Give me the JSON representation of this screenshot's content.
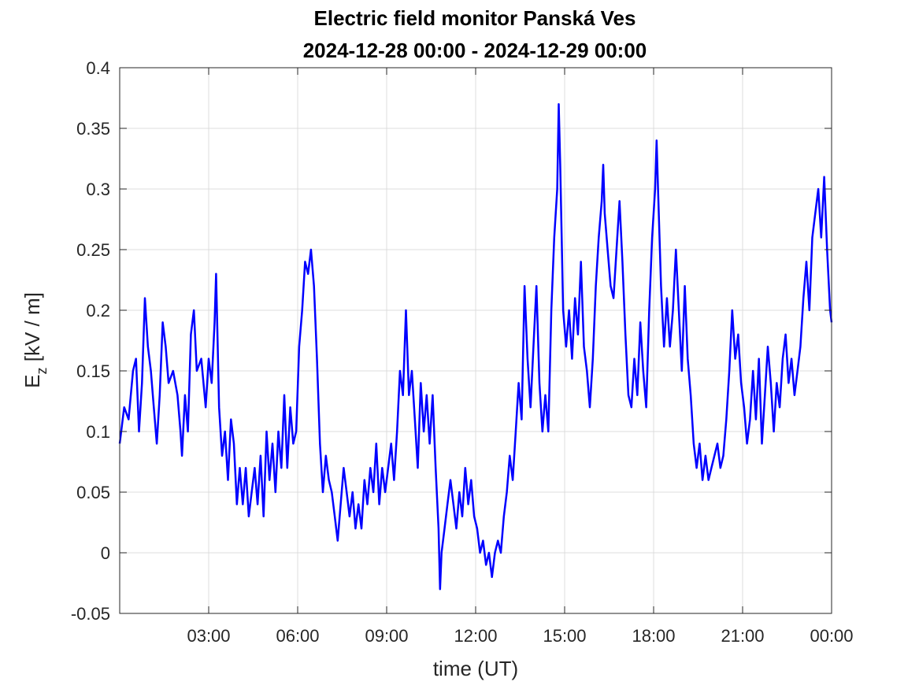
{
  "chart_data": {
    "type": "line",
    "title": "Electric field monitor Panská Ves",
    "subtitle": "2024-12-28 00:00 - 2024-12-29 00:00",
    "xlabel": "time (UT)",
    "ylabel_main": "E",
    "ylabel_sub": "z",
    "ylabel_rest": " [kV / m]",
    "xlim_hours": [
      0,
      24
    ],
    "ylim": [
      -0.05,
      0.4
    ],
    "grid": true,
    "x_ticks": [
      {
        "hour": 3,
        "label": "03:00"
      },
      {
        "hour": 6,
        "label": "06:00"
      },
      {
        "hour": 9,
        "label": "09:00"
      },
      {
        "hour": 12,
        "label": "12:00"
      },
      {
        "hour": 15,
        "label": "15:00"
      },
      {
        "hour": 18,
        "label": "18:00"
      },
      {
        "hour": 21,
        "label": "21:00"
      },
      {
        "hour": 24,
        "label": "00:00"
      }
    ],
    "y_ticks": [
      {
        "value": 0.4,
        "label": "0.4"
      },
      {
        "value": 0.35,
        "label": "0.35"
      },
      {
        "value": 0.3,
        "label": "0.3"
      },
      {
        "value": 0.25,
        "label": "0.25"
      },
      {
        "value": 0.2,
        "label": "0.2"
      },
      {
        "value": 0.15,
        "label": "0.15"
      },
      {
        "value": 0.1,
        "label": "0.1"
      },
      {
        "value": 0.05,
        "label": "0.05"
      },
      {
        "value": 0,
        "label": "0"
      },
      {
        "value": -0.05,
        "label": "-0.05"
      }
    ],
    "series": [
      {
        "color": "#0000ff",
        "points": [
          [
            0.0,
            0.09
          ],
          [
            0.15,
            0.12
          ],
          [
            0.3,
            0.11
          ],
          [
            0.45,
            0.15
          ],
          [
            0.55,
            0.16
          ],
          [
            0.65,
            0.1
          ],
          [
            0.75,
            0.14
          ],
          [
            0.85,
            0.21
          ],
          [
            0.95,
            0.17
          ],
          [
            1.05,
            0.15
          ],
          [
            1.15,
            0.12
          ],
          [
            1.25,
            0.09
          ],
          [
            1.35,
            0.13
          ],
          [
            1.45,
            0.19
          ],
          [
            1.55,
            0.17
          ],
          [
            1.65,
            0.14
          ],
          [
            1.8,
            0.15
          ],
          [
            1.95,
            0.13
          ],
          [
            2.05,
            0.1
          ],
          [
            2.1,
            0.08
          ],
          [
            2.2,
            0.13
          ],
          [
            2.3,
            0.1
          ],
          [
            2.4,
            0.18
          ],
          [
            2.5,
            0.2
          ],
          [
            2.6,
            0.15
          ],
          [
            2.75,
            0.16
          ],
          [
            2.9,
            0.12
          ],
          [
            3.0,
            0.16
          ],
          [
            3.1,
            0.14
          ],
          [
            3.2,
            0.19
          ],
          [
            3.25,
            0.23
          ],
          [
            3.35,
            0.12
          ],
          [
            3.45,
            0.08
          ],
          [
            3.55,
            0.1
          ],
          [
            3.65,
            0.06
          ],
          [
            3.75,
            0.11
          ],
          [
            3.85,
            0.09
          ],
          [
            3.95,
            0.04
          ],
          [
            4.05,
            0.07
          ],
          [
            4.15,
            0.04
          ],
          [
            4.25,
            0.07
          ],
          [
            4.35,
            0.03
          ],
          [
            4.45,
            0.05
          ],
          [
            4.55,
            0.07
          ],
          [
            4.65,
            0.04
          ],
          [
            4.75,
            0.08
          ],
          [
            4.85,
            0.03
          ],
          [
            4.95,
            0.1
          ],
          [
            5.05,
            0.06
          ],
          [
            5.15,
            0.09
          ],
          [
            5.25,
            0.05
          ],
          [
            5.35,
            0.1
          ],
          [
            5.45,
            0.07
          ],
          [
            5.55,
            0.13
          ],
          [
            5.65,
            0.07
          ],
          [
            5.75,
            0.12
          ],
          [
            5.85,
            0.09
          ],
          [
            5.95,
            0.1
          ],
          [
            6.05,
            0.17
          ],
          [
            6.15,
            0.2
          ],
          [
            6.25,
            0.24
          ],
          [
            6.35,
            0.23
          ],
          [
            6.45,
            0.25
          ],
          [
            6.55,
            0.22
          ],
          [
            6.65,
            0.16
          ],
          [
            6.75,
            0.09
          ],
          [
            6.85,
            0.05
          ],
          [
            6.95,
            0.08
          ],
          [
            7.05,
            0.06
          ],
          [
            7.15,
            0.05
          ],
          [
            7.25,
            0.03
          ],
          [
            7.35,
            0.01
          ],
          [
            7.45,
            0.04
          ],
          [
            7.55,
            0.07
          ],
          [
            7.65,
            0.05
          ],
          [
            7.75,
            0.03
          ],
          [
            7.85,
            0.05
          ],
          [
            7.95,
            0.02
          ],
          [
            8.05,
            0.04
          ],
          [
            8.15,
            0.02
          ],
          [
            8.25,
            0.06
          ],
          [
            8.35,
            0.04
          ],
          [
            8.45,
            0.07
          ],
          [
            8.55,
            0.05
          ],
          [
            8.65,
            0.09
          ],
          [
            8.75,
            0.04
          ],
          [
            8.85,
            0.07
          ],
          [
            8.95,
            0.05
          ],
          [
            9.05,
            0.07
          ],
          [
            9.15,
            0.09
          ],
          [
            9.25,
            0.06
          ],
          [
            9.35,
            0.1
          ],
          [
            9.45,
            0.15
          ],
          [
            9.55,
            0.13
          ],
          [
            9.65,
            0.2
          ],
          [
            9.75,
            0.13
          ],
          [
            9.85,
            0.15
          ],
          [
            9.95,
            0.11
          ],
          [
            10.05,
            0.07
          ],
          [
            10.15,
            0.14
          ],
          [
            10.25,
            0.1
          ],
          [
            10.35,
            0.13
          ],
          [
            10.45,
            0.09
          ],
          [
            10.55,
            0.13
          ],
          [
            10.65,
            0.07
          ],
          [
            10.75,
            0.02
          ],
          [
            10.8,
            -0.03
          ],
          [
            10.85,
            0.0
          ],
          [
            10.95,
            0.02
          ],
          [
            11.05,
            0.04
          ],
          [
            11.15,
            0.06
          ],
          [
            11.25,
            0.04
          ],
          [
            11.35,
            0.02
          ],
          [
            11.45,
            0.05
          ],
          [
            11.55,
            0.03
          ],
          [
            11.65,
            0.07
          ],
          [
            11.75,
            0.04
          ],
          [
            11.85,
            0.06
          ],
          [
            11.95,
            0.03
          ],
          [
            12.05,
            0.02
          ],
          [
            12.15,
            0.0
          ],
          [
            12.25,
            0.01
          ],
          [
            12.35,
            -0.01
          ],
          [
            12.45,
            0.0
          ],
          [
            12.55,
            -0.02
          ],
          [
            12.65,
            0.0
          ],
          [
            12.75,
            0.01
          ],
          [
            12.85,
            0.0
          ],
          [
            12.95,
            0.03
          ],
          [
            13.05,
            0.05
          ],
          [
            13.15,
            0.08
          ],
          [
            13.25,
            0.06
          ],
          [
            13.35,
            0.1
          ],
          [
            13.45,
            0.14
          ],
          [
            13.55,
            0.11
          ],
          [
            13.65,
            0.22
          ],
          [
            13.75,
            0.16
          ],
          [
            13.85,
            0.12
          ],
          [
            13.95,
            0.17
          ],
          [
            14.05,
            0.22
          ],
          [
            14.15,
            0.14
          ],
          [
            14.25,
            0.1
          ],
          [
            14.35,
            0.13
          ],
          [
            14.45,
            0.1
          ],
          [
            14.55,
            0.2
          ],
          [
            14.65,
            0.26
          ],
          [
            14.75,
            0.3
          ],
          [
            14.8,
            0.37
          ],
          [
            14.85,
            0.32
          ],
          [
            14.95,
            0.2
          ],
          [
            15.05,
            0.17
          ],
          [
            15.15,
            0.2
          ],
          [
            15.25,
            0.16
          ],
          [
            15.35,
            0.21
          ],
          [
            15.45,
            0.18
          ],
          [
            15.55,
            0.24
          ],
          [
            15.65,
            0.17
          ],
          [
            15.75,
            0.15
          ],
          [
            15.85,
            0.12
          ],
          [
            15.95,
            0.16
          ],
          [
            16.05,
            0.22
          ],
          [
            16.15,
            0.26
          ],
          [
            16.25,
            0.29
          ],
          [
            16.3,
            0.32
          ],
          [
            16.35,
            0.28
          ],
          [
            16.45,
            0.25
          ],
          [
            16.55,
            0.22
          ],
          [
            16.65,
            0.21
          ],
          [
            16.75,
            0.25
          ],
          [
            16.85,
            0.29
          ],
          [
            16.95,
            0.24
          ],
          [
            17.05,
            0.18
          ],
          [
            17.15,
            0.13
          ],
          [
            17.25,
            0.12
          ],
          [
            17.35,
            0.16
          ],
          [
            17.45,
            0.13
          ],
          [
            17.55,
            0.19
          ],
          [
            17.65,
            0.15
          ],
          [
            17.75,
            0.12
          ],
          [
            17.85,
            0.2
          ],
          [
            17.95,
            0.26
          ],
          [
            18.05,
            0.3
          ],
          [
            18.1,
            0.34
          ],
          [
            18.15,
            0.3
          ],
          [
            18.25,
            0.22
          ],
          [
            18.35,
            0.17
          ],
          [
            18.45,
            0.21
          ],
          [
            18.55,
            0.17
          ],
          [
            18.65,
            0.2
          ],
          [
            18.75,
            0.25
          ],
          [
            18.85,
            0.2
          ],
          [
            18.95,
            0.15
          ],
          [
            19.05,
            0.22
          ],
          [
            19.15,
            0.16
          ],
          [
            19.25,
            0.13
          ],
          [
            19.35,
            0.09
          ],
          [
            19.45,
            0.07
          ],
          [
            19.55,
            0.09
          ],
          [
            19.65,
            0.06
          ],
          [
            19.75,
            0.08
          ],
          [
            19.85,
            0.06
          ],
          [
            19.95,
            0.07
          ],
          [
            20.05,
            0.08
          ],
          [
            20.15,
            0.09
          ],
          [
            20.25,
            0.07
          ],
          [
            20.35,
            0.08
          ],
          [
            20.45,
            0.11
          ],
          [
            20.55,
            0.15
          ],
          [
            20.65,
            0.2
          ],
          [
            20.75,
            0.16
          ],
          [
            20.85,
            0.18
          ],
          [
            20.95,
            0.14
          ],
          [
            21.05,
            0.12
          ],
          [
            21.15,
            0.09
          ],
          [
            21.25,
            0.11
          ],
          [
            21.35,
            0.15
          ],
          [
            21.45,
            0.11
          ],
          [
            21.55,
            0.16
          ],
          [
            21.65,
            0.09
          ],
          [
            21.75,
            0.13
          ],
          [
            21.85,
            0.17
          ],
          [
            21.95,
            0.14
          ],
          [
            22.05,
            0.1
          ],
          [
            22.15,
            0.14
          ],
          [
            22.25,
            0.12
          ],
          [
            22.35,
            0.16
          ],
          [
            22.45,
            0.18
          ],
          [
            22.55,
            0.14
          ],
          [
            22.65,
            0.16
          ],
          [
            22.75,
            0.13
          ],
          [
            22.85,
            0.15
          ],
          [
            22.95,
            0.17
          ],
          [
            23.05,
            0.21
          ],
          [
            23.15,
            0.24
          ],
          [
            23.25,
            0.2
          ],
          [
            23.35,
            0.26
          ],
          [
            23.45,
            0.28
          ],
          [
            23.55,
            0.3
          ],
          [
            23.65,
            0.26
          ],
          [
            23.75,
            0.31
          ],
          [
            23.85,
            0.25
          ],
          [
            23.95,
            0.2
          ],
          [
            24.0,
            0.19
          ]
        ]
      }
    ]
  }
}
